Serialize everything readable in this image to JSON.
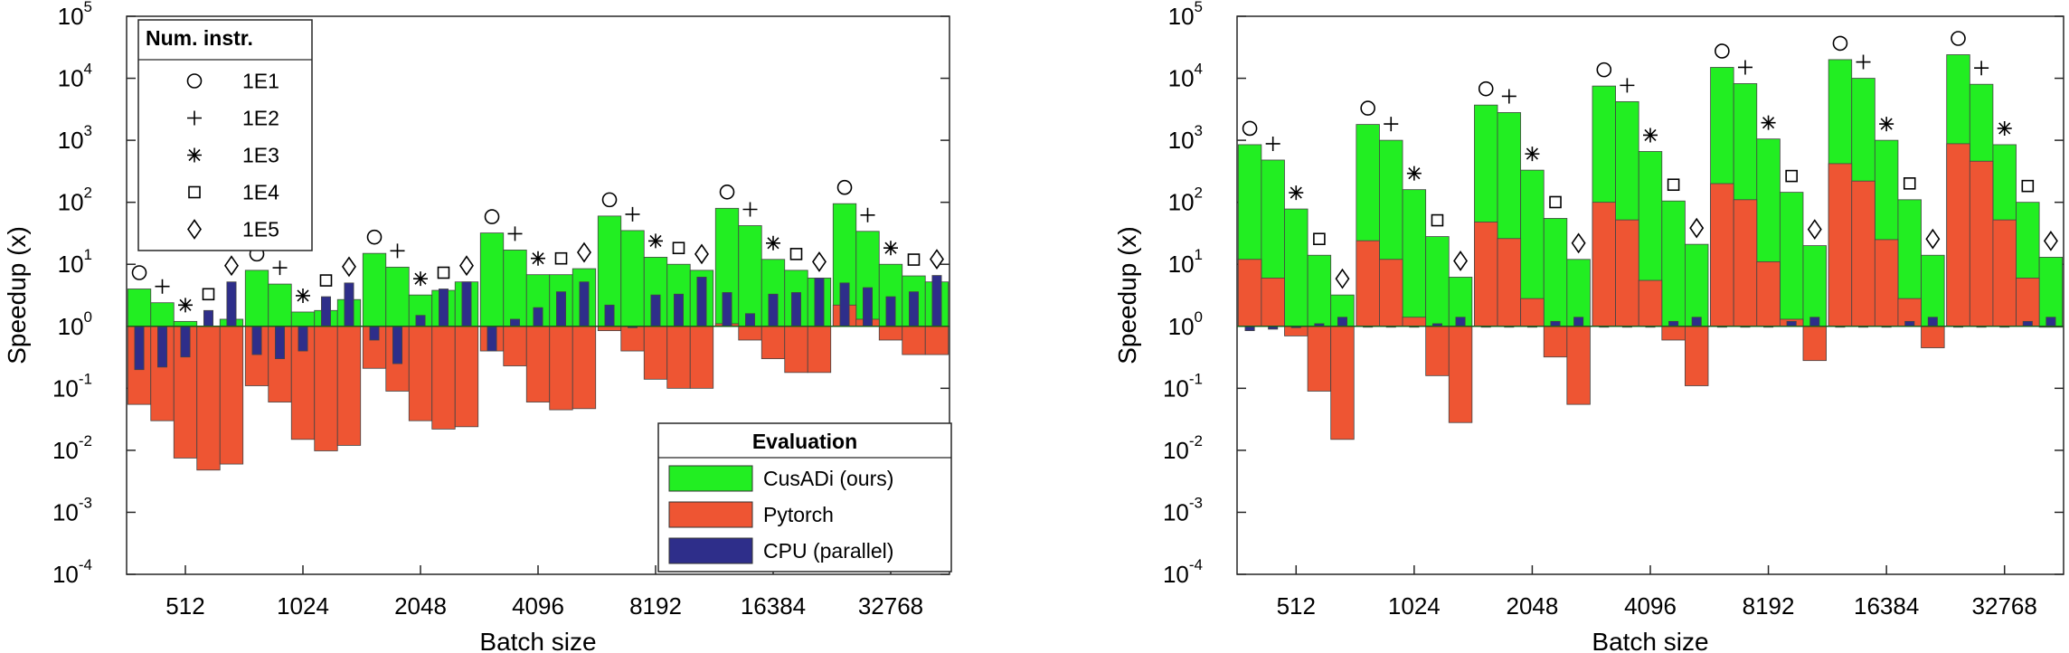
{
  "chart_data": [
    {
      "type": "bar",
      "yscale": "log",
      "ylim": [
        0.0001,
        100000
      ],
      "ylabel": "Speedup (x)",
      "xlabel": "Batch size",
      "categories": [
        "512",
        "1024",
        "2048",
        "4096",
        "8192",
        "16384",
        "32768"
      ],
      "markers": [
        "circle",
        "plus",
        "asterisk",
        "square",
        "diamond"
      ],
      "series": [
        {
          "name": "CusADi (ours)",
          "color": "#22ee22",
          "values": [
            [
              4,
              2.4,
              1.2,
              0.9,
              1.3
            ],
            [
              8,
              4.8,
              1.7,
              1.8,
              2.7
            ],
            [
              15,
              9,
              3.2,
              3.8,
              5.2
            ],
            [
              32,
              17,
              6.8,
              6.8,
              8.5
            ],
            [
              60,
              35,
              13,
              10,
              8
            ],
            [
              80,
              42,
              12,
              8,
              6
            ],
            [
              95,
              34,
              10,
              6.5,
              5.2
            ]
          ]
        },
        {
          "name": "Pytorch",
          "color": "#ee5533",
          "values": [
            [
              0.055,
              0.03,
              0.0075,
              0.0048,
              0.006
            ],
            [
              0.11,
              0.06,
              0.015,
              0.0098,
              0.012
            ],
            [
              0.21,
              0.09,
              0.03,
              0.022,
              0.024
            ],
            [
              0.4,
              0.23,
              0.06,
              0.045,
              0.047
            ],
            [
              0.85,
              0.4,
              0.14,
              0.1,
              0.1
            ],
            [
              1.1,
              0.6,
              0.3,
              0.18,
              0.18
            ],
            [
              2.2,
              1.3,
              0.6,
              0.35,
              0.35
            ]
          ]
        },
        {
          "name": "CPU (parallel)",
          "color": "#2e2e8a",
          "values": [
            [
              0.2,
              0.22,
              0.32,
              1.8,
              5.2
            ],
            [
              0.35,
              0.3,
              0.4,
              3,
              5
            ],
            [
              0.6,
              0.25,
              1.5,
              4,
              5.2
            ],
            [
              0.4,
              1.3,
              2,
              3.6,
              5.2
            ],
            [
              2.2,
              0.95,
              3.2,
              3.3,
              6.2
            ],
            [
              3.5,
              1.6,
              3.3,
              3.5,
              6
            ],
            [
              5,
              4.2,
              3,
              3.6,
              6.6
            ]
          ]
        }
      ],
      "legends": [
        {
          "title": "Num. instr.",
          "entries": [
            "1E1",
            "1E2",
            "1E3",
            "1E4",
            "1E5"
          ]
        },
        {
          "title": "Evaluation",
          "entries": [
            "CusADi (ours)",
            "Pytorch",
            "CPU (parallel)"
          ]
        }
      ]
    },
    {
      "type": "bar",
      "yscale": "log",
      "ylim": [
        0.0001,
        100000
      ],
      "ylabel": "Speedup (x)",
      "xlabel": "Batch size",
      "categories": [
        "512",
        "1024",
        "2048",
        "4096",
        "8192",
        "16384",
        "32768"
      ],
      "markers": [
        "circle",
        "plus",
        "asterisk",
        "square",
        "diamond"
      ],
      "series": [
        {
          "name": "CusADi (ours)",
          "color": "#22ee22",
          "values": [
            [
              850,
              480,
              78,
              14,
              3.2
            ],
            [
              1800,
              1000,
              160,
              28,
              6.2
            ],
            [
              3700,
              2800,
              330,
              55,
              12
            ],
            [
              7500,
              4200,
              660,
              105,
              21
            ],
            [
              15000,
              8200,
              1050,
              145,
              20
            ],
            [
              20000,
              10000,
              1000,
              110,
              14
            ],
            [
              24000,
              8000,
              850,
              100,
              13
            ]
          ]
        },
        {
          "name": "Pytorch",
          "color": "#ee5533",
          "values": [
            [
              12,
              6,
              0.7,
              0.09,
              0.015
            ],
            [
              24,
              12,
              1.4,
              0.16,
              0.028
            ],
            [
              48,
              26,
              2.8,
              0.32,
              0.055
            ],
            [
              100,
              52,
              5.5,
              0.6,
              0.11
            ],
            [
              200,
              110,
              11,
              1.3,
              0.28
            ],
            [
              420,
              220,
              25,
              2.8,
              0.45
            ],
            [
              880,
              460,
              52,
              6,
              1
            ]
          ]
        },
        {
          "name": "CPU (parallel)",
          "color": "#2e2e8a",
          "values": [
            [
              0.85,
              0.9,
              0.95,
              1.1,
              1.4
            ],
            [
              1,
              1,
              1,
              1.1,
              1.4
            ],
            [
              1,
              1,
              1,
              1.2,
              1.4
            ],
            [
              1,
              1,
              1,
              1.2,
              1.4
            ],
            [
              1,
              1,
              1,
              1.2,
              1.4
            ],
            [
              1,
              1,
              1,
              1.2,
              1.4
            ],
            [
              1,
              1,
              1,
              1.2,
              1.4
            ]
          ]
        }
      ],
      "legends": []
    }
  ]
}
